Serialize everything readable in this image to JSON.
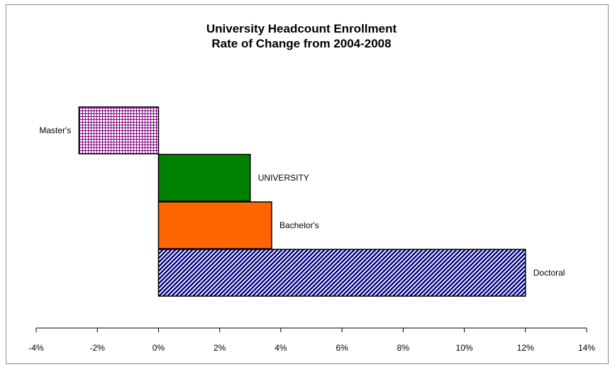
{
  "chart_data": {
    "type": "bar",
    "orientation": "horizontal",
    "title": [
      "University Headcount Enrollment",
      "Rate of Change from 2004-2008"
    ],
    "categories": [
      "Master's",
      "UNIVERSITY",
      "Bachelor's",
      "Doctoral"
    ],
    "values": [
      -2.6,
      3.0,
      3.7,
      12.0
    ],
    "value_unit": "%",
    "xlim": [
      -4,
      14
    ],
    "xticks": [
      -4,
      -2,
      0,
      2,
      4,
      6,
      8,
      10,
      12,
      14
    ],
    "xtick_labels": [
      "-4%",
      "-2%",
      "0%",
      "2%",
      "4%",
      "6%",
      "8%",
      "10%",
      "12%",
      "14%"
    ],
    "grid": false,
    "legend": "none",
    "fills": [
      {
        "pattern": "grid",
        "color": "#800080",
        "background": "#ffffff"
      },
      {
        "pattern": "solid",
        "color": "#008000"
      },
      {
        "pattern": "solid",
        "color": "#ff6600"
      },
      {
        "pattern": "diagonal-stripes",
        "color": "#000080",
        "background": "#ffffff"
      }
    ]
  }
}
